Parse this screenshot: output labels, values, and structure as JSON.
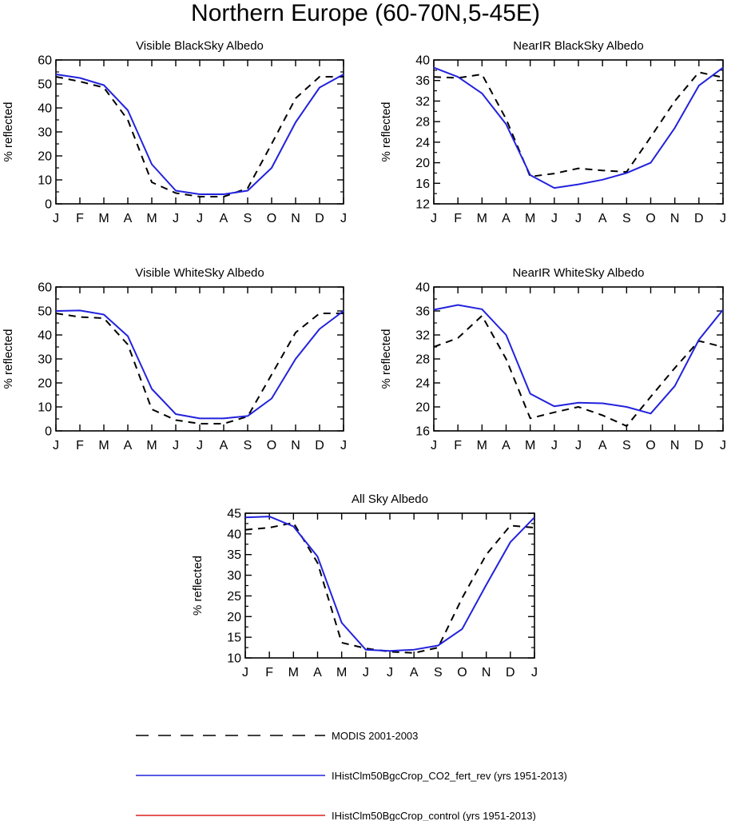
{
  "page_title": "Northern Europe (60-70N,5-45E)",
  "colors": {
    "modis": "#000000",
    "fert": "#2222dd",
    "control": "#dd2222"
  },
  "legend": [
    {
      "label": "MODIS 2001-2003",
      "style": "dashed",
      "color": "#000000"
    },
    {
      "label": "IHistClm50BgcCrop_CO2_fert_rev (yrs 1951-2013)",
      "style": "solid",
      "color": "#2222dd"
    },
    {
      "label": "IHistClm50BgcCrop_control (yrs 1951-2013)",
      "style": "solid",
      "color": "#dd2222"
    }
  ],
  "chart_data": [
    {
      "type": "line",
      "title": "Visible BlackSky Albedo",
      "xlabel": "",
      "ylabel": "% reflected",
      "categories": [
        "J",
        "F",
        "M",
        "A",
        "M",
        "J",
        "J",
        "A",
        "S",
        "O",
        "N",
        "D",
        "J"
      ],
      "ylim": [
        0,
        60
      ],
      "yticks": [
        0,
        10,
        20,
        30,
        40,
        50,
        60
      ],
      "series": [
        {
          "name": "MODIS 2001-2003",
          "values": [
            53,
            51,
            48.5,
            35,
            9,
            4.5,
            3,
            3,
            6.5,
            25,
            44,
            53,
            53
          ]
        },
        {
          "name": "IHistClm50BgcCrop_CO2_fert_rev (yrs 1951-2013)",
          "values": [
            54,
            52.5,
            49.5,
            39,
            16.5,
            5.5,
            4,
            4,
            5.5,
            15,
            34,
            48.5,
            54
          ]
        }
      ]
    },
    {
      "type": "line",
      "title": "NearIR BlackSky Albedo",
      "xlabel": "",
      "ylabel": "% reflected",
      "categories": [
        "J",
        "F",
        "M",
        "A",
        "M",
        "J",
        "J",
        "A",
        "S",
        "O",
        "N",
        "D",
        "J"
      ],
      "ylim": [
        12,
        40
      ],
      "yticks": [
        12,
        16,
        20,
        24,
        28,
        32,
        36,
        40
      ],
      "series": [
        {
          "name": "MODIS 2001-2003",
          "values": [
            36.7,
            36.5,
            37.2,
            28.5,
            17.3,
            17.9,
            18.9,
            18.5,
            18.2,
            25,
            32,
            37.6,
            36.6
          ]
        },
        {
          "name": "IHistClm50BgcCrop_CO2_fert_rev (yrs 1951-2013)",
          "values": [
            38.5,
            36.7,
            33.5,
            27.5,
            17.6,
            15.1,
            15.8,
            16.7,
            18,
            20,
            26.8,
            35,
            38.5
          ]
        }
      ]
    },
    {
      "type": "line",
      "title": "Visible WhiteSky Albedo",
      "xlabel": "",
      "ylabel": "% reflected",
      "categories": [
        "J",
        "F",
        "M",
        "A",
        "M",
        "J",
        "J",
        "A",
        "S",
        "O",
        "N",
        "D",
        "J"
      ],
      "ylim": [
        0,
        60
      ],
      "yticks": [
        0,
        10,
        20,
        30,
        40,
        50,
        60
      ],
      "series": [
        {
          "name": "MODIS 2001-2003",
          "values": [
            49,
            47.5,
            47,
            36,
            9,
            4.5,
            3,
            3,
            6,
            23.5,
            41,
            49,
            49
          ]
        },
        {
          "name": "IHistClm50BgcCrop_CO2_fert_rev (yrs 1951-2013)",
          "values": [
            50,
            50.2,
            48.5,
            39.5,
            17.5,
            7,
            5.2,
            5.2,
            6.2,
            13.5,
            30,
            42.5,
            50
          ]
        }
      ]
    },
    {
      "type": "line",
      "title": "NearIR WhiteSky Albedo",
      "xlabel": "",
      "ylabel": "% reflected",
      "categories": [
        "J",
        "F",
        "M",
        "A",
        "M",
        "J",
        "J",
        "A",
        "S",
        "O",
        "N",
        "D",
        "J"
      ],
      "ylim": [
        16,
        40
      ],
      "yticks": [
        16,
        20,
        24,
        28,
        32,
        36,
        40
      ],
      "series": [
        {
          "name": "MODIS 2001-2003",
          "values": [
            30,
            31.5,
            35.2,
            28,
            18.1,
            19.1,
            20,
            18.6,
            16.8,
            21.7,
            26.5,
            31,
            30
          ]
        },
        {
          "name": "IHistClm50BgcCrop_CO2_fert_rev (yrs 1951-2013)",
          "values": [
            36.2,
            37,
            36.3,
            32,
            22.2,
            20.1,
            20.7,
            20.6,
            20,
            18.9,
            23.5,
            31.2,
            36.2
          ]
        }
      ]
    },
    {
      "type": "line",
      "title": "All Sky Albedo",
      "xlabel": "",
      "ylabel": "% reflected",
      "categories": [
        "J",
        "F",
        "M",
        "A",
        "M",
        "J",
        "J",
        "A",
        "S",
        "O",
        "N",
        "D",
        "J"
      ],
      "ylim": [
        10,
        45
      ],
      "yticks": [
        10,
        15,
        20,
        25,
        30,
        35,
        40,
        45
      ],
      "series": [
        {
          "name": "MODIS 2001-2003",
          "values": [
            41,
            41.5,
            42.7,
            33,
            13.7,
            12.3,
            11.5,
            11.2,
            12.5,
            24.5,
            35,
            42,
            41.5
          ]
        },
        {
          "name": "IHistClm50BgcCrop_CO2_fert_rev (yrs 1951-2013)",
          "values": [
            44,
            44.2,
            41.8,
            34.5,
            18.5,
            12,
            11.7,
            12,
            13,
            17,
            27.7,
            38,
            44
          ]
        }
      ]
    }
  ]
}
